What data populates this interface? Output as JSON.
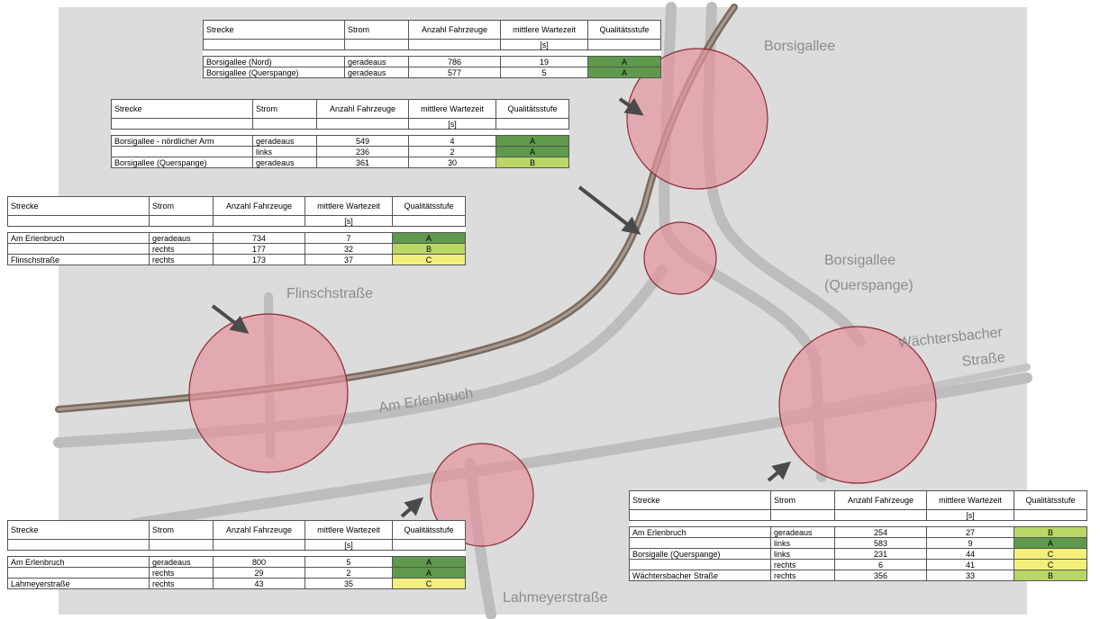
{
  "labels": [
    {
      "lines": [
        "Borsigallee"
      ]
    },
    {
      "lines": [
        "Flinschstraße"
      ]
    },
    {
      "lines": [
        "Am Erlenbruch"
      ]
    },
    {
      "lines": [
        "Borsigallee",
        "(Querspange)"
      ]
    },
    {
      "lines": [
        "Wächtersbacher",
        "Straße"
      ]
    },
    {
      "lines": [
        "Lahmeyerstraße"
      ]
    }
  ],
  "grade_colors": {
    "A": "#5f9a4c",
    "B": "#b9d766",
    "C": "#f4ef7c"
  },
  "tables": [
    {
      "columns": [
        "Strecke",
        "Strom",
        "Anzahl Fahrzeuge",
        "mittlere Wartezeit",
        "Qualitätsstufe"
      ],
      "unit": "[s]",
      "rows": [
        [
          "Borsigallee (Nord)",
          "geradeaus",
          786,
          19,
          "A"
        ],
        [
          "Borsigallee (Querspange)",
          "geradeaus",
          577,
          5,
          "A"
        ]
      ]
    },
    {
      "columns": [
        "Strecke",
        "Strom",
        "Anzahl Fahrzeuge",
        "mittlere Wartezeit",
        "Qualitätsstufe"
      ],
      "unit": "[s]",
      "rows": [
        [
          "Borsigallee - nördlicher Arm",
          "geradeaus",
          549,
          4,
          "A"
        ],
        [
          null,
          "links",
          236,
          2,
          "A"
        ],
        [
          "Borsigallee (Querspange)",
          "geradeaus",
          361,
          30,
          "B"
        ]
      ]
    },
    {
      "columns": [
        "Strecke",
        "Strom",
        "Anzahl Fahrzeuge",
        "mittlere Wartezeit",
        "Qualitätsstufe"
      ],
      "unit": "[s]",
      "rows": [
        [
          "Am Erlenbruch",
          "geradeaus",
          734,
          7,
          "A"
        ],
        [
          null,
          "rechts",
          177,
          32,
          "B"
        ],
        [
          "Flinschstraße",
          "rechts",
          173,
          37,
          "C"
        ]
      ]
    },
    {
      "columns": [
        "Strecke",
        "Strom",
        "Anzahl Fahrzeuge",
        "mittlere Wartezeit",
        "Qualitätsstufe"
      ],
      "unit": "[s]",
      "rows": [
        [
          "Am Erlenbruch",
          "geradeaus",
          800,
          5,
          "A"
        ],
        [
          null,
          "rechts",
          29,
          2,
          "A"
        ],
        [
          "Lahmeyerstraße",
          "rechts",
          43,
          35,
          "C"
        ]
      ]
    },
    {
      "columns": [
        "Strecke",
        "Strom",
        "Anzahl Fahrzeuge",
        "mittlere Wartezeit",
        "Qualitätsstufe"
      ],
      "unit": "[s]",
      "rows": [
        [
          "Am Erlenbruch",
          "geradeaus",
          254,
          27,
          "B"
        ],
        [
          null,
          "links",
          583,
          9,
          "A"
        ],
        [
          "Borsigalle (Querspange)",
          "links",
          231,
          44,
          "C"
        ],
        [
          null,
          "rechts",
          6,
          41,
          "C"
        ],
        [
          "Wächtersbacher Straße",
          "rechts",
          356,
          33,
          "B"
        ]
      ]
    }
  ]
}
